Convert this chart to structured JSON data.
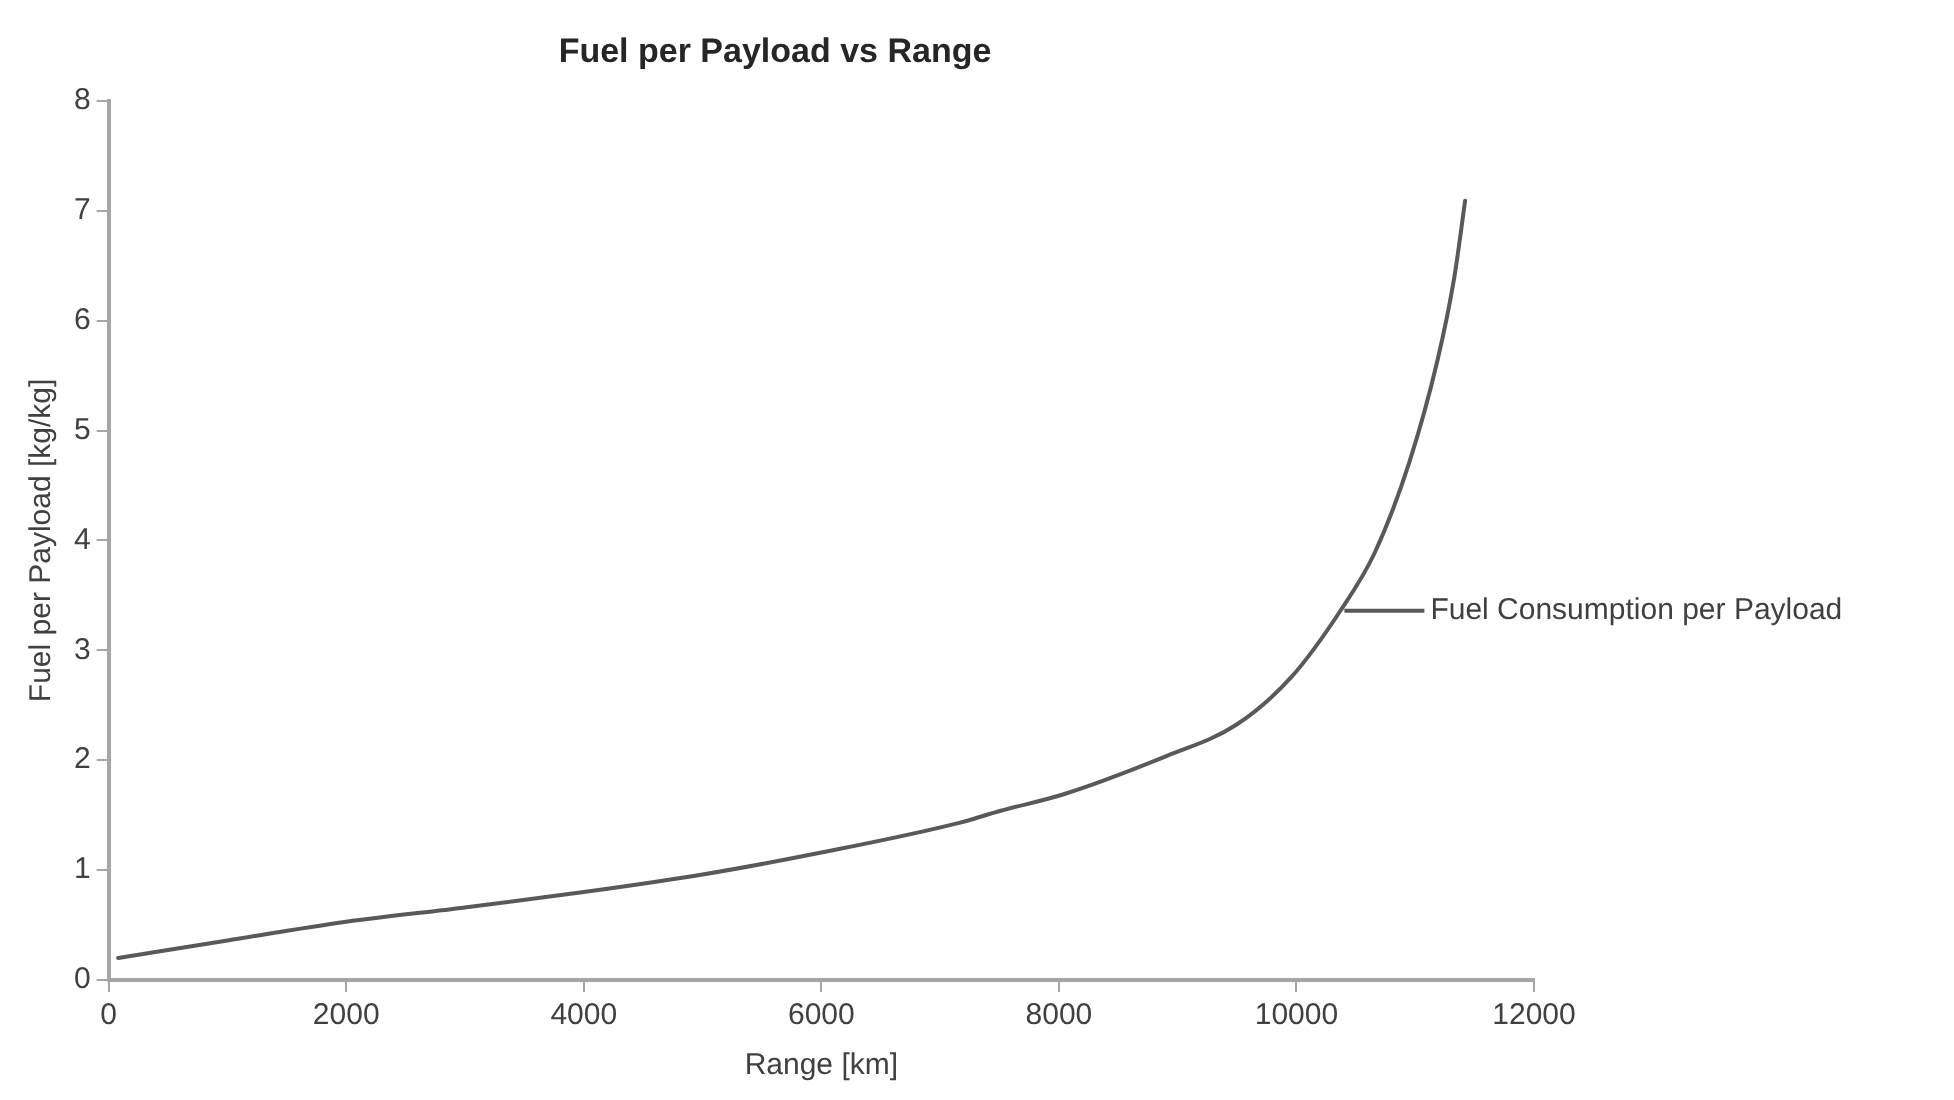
{
  "chart_data": {
    "type": "line",
    "title": "Fuel per Payload vs Range",
    "xlabel": "Range [km]",
    "ylabel": "Fuel per Payload [kg/kg]",
    "xlim": [
      0,
      12000
    ],
    "xticks": [
      0,
      2000,
      4000,
      6000,
      8000,
      10000,
      12000
    ],
    "ylim": [
      0,
      8
    ],
    "yticks": [
      0,
      1,
      2,
      3,
      4,
      5,
      6,
      7,
      8
    ],
    "marker": "none",
    "series": [
      {
        "name": "Fuel Consumption per Payload",
        "color": "#595959",
        "x": [
          80,
          1000,
          2000,
          3000,
          4000,
          5000,
          6000,
          7160,
          7510,
          8040,
          8910,
          9490,
          9960,
          10370,
          10660,
          10950,
          11190,
          11330,
          11420
        ],
        "values": [
          0.2,
          0.36,
          0.53,
          0.66,
          0.8,
          0.96,
          1.16,
          1.43,
          1.54,
          1.69,
          2.04,
          2.32,
          2.76,
          3.36,
          3.89,
          4.71,
          5.65,
          6.4,
          7.09
        ]
      }
    ]
  }
}
